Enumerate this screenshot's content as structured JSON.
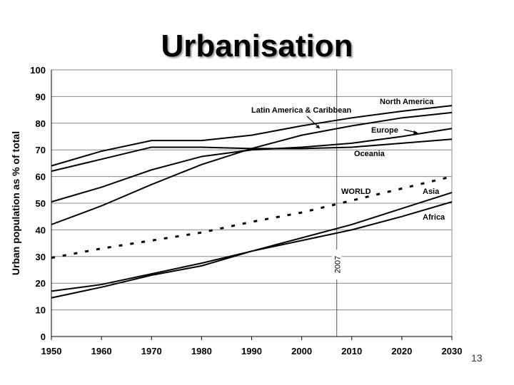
{
  "slide": {
    "title": "Urbanisation",
    "page_number": "13"
  },
  "chart_data": {
    "type": "line",
    "title": "Urbanisation",
    "xlabel": "",
    "ylabel": "Urban population as % of total",
    "x": [
      1950,
      1960,
      1970,
      1980,
      1990,
      2000,
      2010,
      2020,
      2030
    ],
    "xlim": [
      1950,
      2030
    ],
    "ylim": [
      0,
      100
    ],
    "xticks": [
      "1950",
      "1960",
      "1970",
      "1980",
      "1990",
      "2000",
      "2010",
      "2020",
      "2030"
    ],
    "yticks": [
      "0",
      "10",
      "20",
      "30",
      "40",
      "50",
      "60",
      "70",
      "80",
      "90",
      "100"
    ],
    "grid": true,
    "reference_line": {
      "x": 2007,
      "label": "2007"
    },
    "series": [
      {
        "name": "North America",
        "style": "solid",
        "values": [
          64,
          69.5,
          73.5,
          73.5,
          75.5,
          79,
          82,
          84.5,
          86.6
        ]
      },
      {
        "name": "Latin America & Caribbean",
        "style": "solid",
        "values": [
          42,
          49,
          57,
          64.5,
          70.5,
          75.5,
          79,
          82,
          84
        ]
      },
      {
        "name": "Europe",
        "style": "solid",
        "values": [
          50.5,
          56,
          62.5,
          67.5,
          70,
          71,
          72.5,
          75,
          78
        ]
      },
      {
        "name": "Oceania",
        "style": "solid",
        "values": [
          62,
          66.5,
          71,
          71,
          70.5,
          70.5,
          71,
          72.5,
          74
        ]
      },
      {
        "name": "WORLD",
        "style": "dashed",
        "values": [
          29.5,
          33,
          36,
          39,
          43,
          46.5,
          51,
          55.5,
          60
        ]
      },
      {
        "name": "Asia",
        "style": "solid",
        "values": [
          14.5,
          18.5,
          23,
          26.5,
          32,
          37,
          42,
          48,
          54
        ]
      },
      {
        "name": "Africa",
        "style": "solid",
        "values": [
          17,
          19.5,
          23.5,
          27.5,
          32,
          36,
          40,
          45,
          50.5
        ]
      }
    ]
  }
}
